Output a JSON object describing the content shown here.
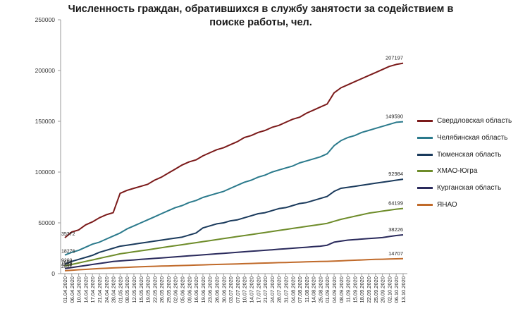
{
  "chart_data": {
    "type": "line",
    "title_line1": "Численность граждан, обратившихся в службу занятости за содействием в",
    "title_line2": "поиске работы, чел.",
    "xlabel": "",
    "ylabel": "",
    "ylim": [
      0,
      250000
    ],
    "yticks": [
      "0",
      "50000",
      "100000",
      "150000",
      "200000",
      "250000"
    ],
    "x_tick_labels": [
      "01.04.2020",
      "06.04.2020",
      "10.04.2020",
      "14.04.2020",
      "17.04.2020",
      "21.04.2020",
      "24.04.2020",
      "28.04.2020",
      "01.05.2020",
      "08.05.2020",
      "12.05.2020",
      "15.05.2020",
      "19.05.2020",
      "22.05.2020",
      "26.05.2020",
      "29.05.2020",
      "02.06.2020",
      "05.06.2020",
      "09.06.2020",
      "16.06.2020",
      "19.06.2020",
      "23.06.2020",
      "26.06.2020",
      "30.06.2020",
      "03.07.2020",
      "07.07.2020",
      "10.07.2020",
      "14.07.2020",
      "17.07.2020",
      "21.07.2020",
      "24.07.2020",
      "28.07.2020",
      "31.07.2020",
      "04.08.2020",
      "07.08.2020",
      "11.08.2020",
      "14.08.2020",
      "25.08.2020",
      "01.09.2020",
      "04.09.2020",
      "08.09.2020",
      "11.09.2020",
      "15.09.2020",
      "18.09.2020",
      "22.09.2020",
      "25.09.2020",
      "29.09.2020",
      "02.10.2020",
      "06.10.2020",
      "13.10.2020"
    ],
    "grid": false,
    "legend_position": "right",
    "series": [
      {
        "name": "Свердловская область",
        "color": "#7b1a1a",
        "start_label": "35372",
        "end_label": "207197",
        "values": [
          35372,
          41000,
          43000,
          48000,
          51000,
          55000,
          58000,
          60000,
          79000,
          82000,
          84000,
          86000,
          88000,
          92000,
          95000,
          99000,
          103000,
          107000,
          110000,
          112000,
          116000,
          119000,
          122000,
          124000,
          127000,
          130000,
          134000,
          136000,
          139000,
          141000,
          144000,
          146000,
          149000,
          152000,
          154000,
          158000,
          161000,
          164000,
          167000,
          178000,
          183000,
          186000,
          189000,
          192000,
          195000,
          198000,
          201000,
          204000,
          206000,
          207197
        ]
      },
      {
        "name": "Челябинская область",
        "color": "#2b7a8c",
        "start_label": "18276",
        "end_label": "149590",
        "values": [
          18276,
          21000,
          23000,
          26000,
          29000,
          31000,
          34000,
          37000,
          40000,
          44000,
          47000,
          50000,
          53000,
          56000,
          59000,
          62000,
          65000,
          67000,
          70000,
          72000,
          75000,
          77000,
          79000,
          81000,
          84000,
          87000,
          90000,
          92000,
          95000,
          97000,
          100000,
          102000,
          104000,
          106000,
          109000,
          111000,
          113000,
          115000,
          118000,
          126000,
          131000,
          134000,
          136000,
          139000,
          141000,
          143000,
          145000,
          147000,
          149000,
          149590
        ]
      },
      {
        "name": "Тюменская область",
        "color": "#1a3a5c",
        "start_label": "9203",
        "end_label": "92984",
        "values": [
          9203,
          12000,
          14000,
          16000,
          18000,
          21000,
          23000,
          25000,
          27000,
          28000,
          29000,
          30000,
          31000,
          32000,
          33000,
          34000,
          35000,
          36000,
          38000,
          40000,
          45000,
          47000,
          49000,
          50000,
          52000,
          53000,
          55000,
          57000,
          59000,
          60000,
          62000,
          64000,
          65000,
          67000,
          69000,
          70000,
          72000,
          74000,
          76000,
          81000,
          84000,
          85000,
          86000,
          87000,
          88000,
          89000,
          90000,
          91000,
          92000,
          92984
        ]
      },
      {
        "name": "ХМАО-Югра",
        "color": "#6e8c2a",
        "start_label": "7608",
        "end_label": "64199",
        "values": [
          7608,
          9000,
          10500,
          12000,
          13500,
          15000,
          16500,
          18000,
          19500,
          20500,
          21500,
          22500,
          23500,
          24500,
          25500,
          26500,
          27500,
          28500,
          29500,
          30500,
          31500,
          32500,
          33500,
          34500,
          35500,
          36500,
          37500,
          38500,
          39500,
          40500,
          41500,
          42500,
          43500,
          44500,
          45500,
          46500,
          47500,
          48500,
          49500,
          51500,
          53500,
          55000,
          56500,
          58000,
          59500,
          60500,
          61500,
          62500,
          63500,
          64199
        ]
      },
      {
        "name": "Курганская область",
        "color": "#2a2a5c",
        "start_label": "4898",
        "end_label": "38226",
        "values": [
          4898,
          6000,
          7000,
          8000,
          9000,
          10000,
          11000,
          12000,
          12500,
          13000,
          13500,
          14000,
          14500,
          15000,
          15500,
          16000,
          16500,
          17000,
          17500,
          18000,
          18500,
          19000,
          19500,
          20000,
          20500,
          21000,
          21500,
          22000,
          22500,
          23000,
          23500,
          24000,
          24500,
          25000,
          25500,
          26000,
          26500,
          27000,
          28000,
          31000,
          32000,
          33000,
          33500,
          34000,
          34500,
          35000,
          35500,
          36500,
          37500,
          38226
        ]
      },
      {
        "name": "ЯНАО",
        "color": "#c06a2a",
        "start_label": "2831",
        "end_label": "14707",
        "values": [
          2831,
          3300,
          3800,
          4200,
          4600,
          5000,
          5300,
          5600,
          5900,
          6200,
          6500,
          6800,
          7000,
          7200,
          7400,
          7600,
          7800,
          8000,
          8200,
          8400,
          8600,
          8800,
          9000,
          9200,
          9400,
          9600,
          9800,
          10000,
          10200,
          10400,
          10600,
          10800,
          11000,
          11200,
          11400,
          11600,
          11800,
          12000,
          12100,
          12300,
          12600,
          12900,
          13200,
          13500,
          13800,
          14000,
          14200,
          14400,
          14600,
          14707
        ]
      }
    ]
  }
}
